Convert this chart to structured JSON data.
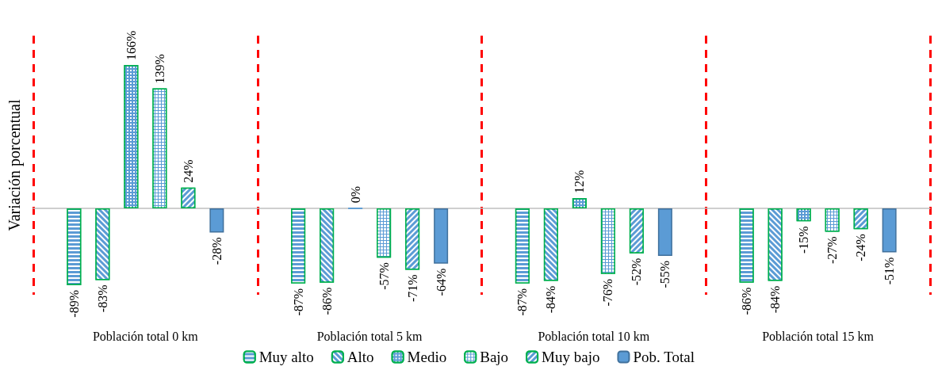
{
  "chart_data": {
    "type": "bar",
    "ylabel": "Variación porcentual",
    "categories": [
      "Población total 0 km",
      "Población total 5 km",
      "Población total 10 km",
      "Población total 15 km"
    ],
    "series": [
      {
        "name": "Muy alto",
        "color": "#5b9bd5",
        "values": [
          -89,
          -87,
          -87,
          -86
        ],
        "value_labels": [
          "-89%",
          "-87%",
          "-87%",
          "-86%"
        ]
      },
      {
        "name": "Alto",
        "color": "#5b9bd5",
        "values": [
          -83,
          -86,
          -84,
          -84
        ],
        "value_labels": [
          "-83%",
          "-86%",
          "-84%",
          "-84%"
        ]
      },
      {
        "name": "Medio",
        "color": "#5b9bd5",
        "values": [
          166,
          0,
          12,
          -15
        ],
        "value_labels": [
          "166%",
          "0%",
          "12%",
          "-15%"
        ]
      },
      {
        "name": "Bajo",
        "color": "#5b9bd5",
        "values": [
          139,
          -57,
          -76,
          -27
        ],
        "value_labels": [
          "139%",
          "-57%",
          "-76%",
          "-27%"
        ]
      },
      {
        "name": "Muy bajo",
        "color": "#5b9bd5",
        "values": [
          24,
          -71,
          -52,
          -24
        ],
        "value_labels": [
          "24%",
          "-71%",
          "-52%",
          "-24%"
        ]
      },
      {
        "name": "Pob. Total",
        "color": "#5b9bd5",
        "values": [
          -28,
          -64,
          -55,
          -51
        ],
        "value_labels": [
          "-28%",
          "-64%",
          "-55%",
          "-51%"
        ]
      }
    ],
    "grid": "x",
    "legend": "bottom"
  }
}
